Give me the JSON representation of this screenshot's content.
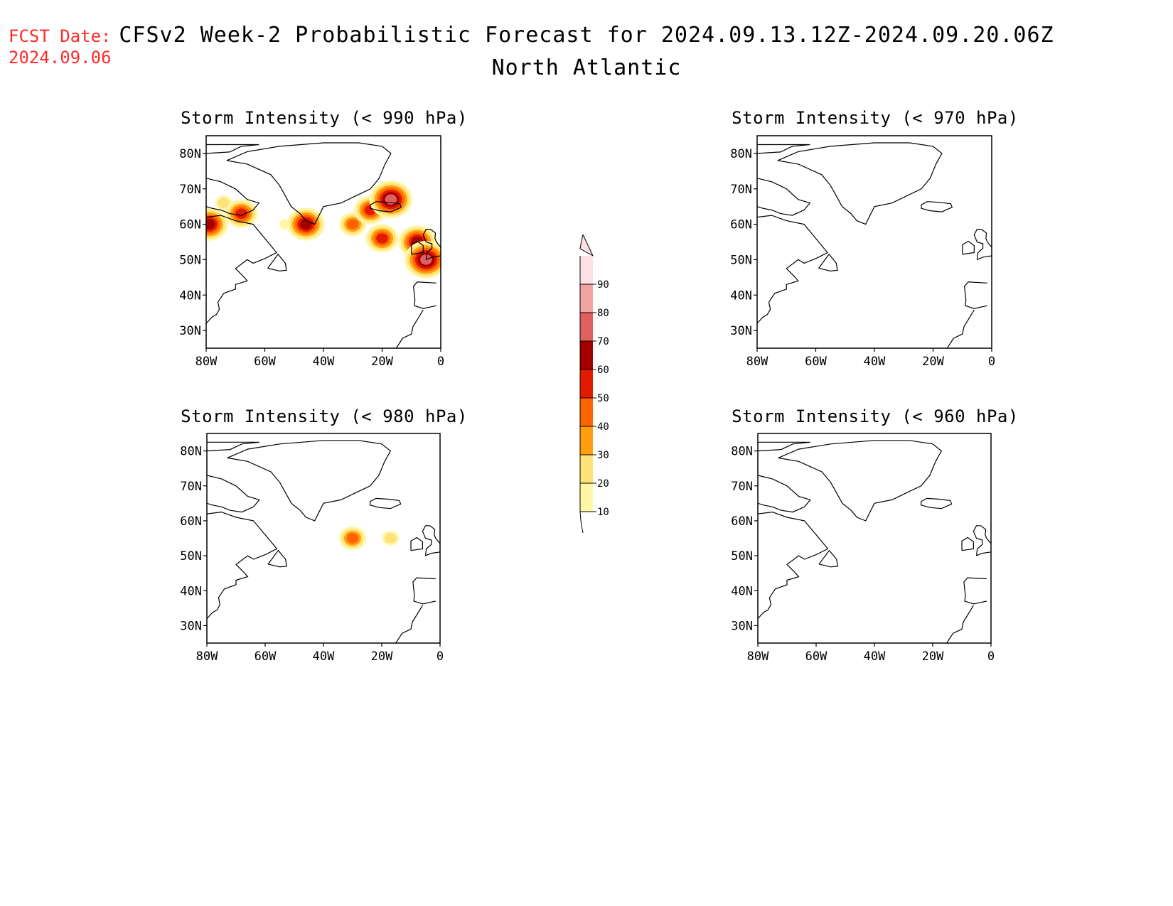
{
  "header": {
    "fcst_label": "FCST Date:",
    "fcst_date": "2024.09.06",
    "title": "CFSv2 Week-2 Probabilistic Forecast for 2024.09.13.12Z-2024.09.20.06Z",
    "subtitle": "North Atlantic"
  },
  "panels": [
    {
      "title": "Storm Intensity (< 990 hPa)"
    },
    {
      "title": "Storm Intensity (< 970 hPa)"
    },
    {
      "title": "Storm Intensity (< 980 hPa)"
    },
    {
      "title": "Storm Intensity (< 960 hPa)"
    }
  ],
  "axes": {
    "lat_labels": [
      "80N",
      "70N",
      "60N",
      "50N",
      "40N",
      "30N"
    ],
    "lon_labels": [
      "80W",
      "60W",
      "40W",
      "20W",
      "0"
    ]
  },
  "colorbar": {
    "levels": [
      "10",
      "20",
      "30",
      "40",
      "50",
      "60",
      "70",
      "80",
      "90"
    ],
    "colors": [
      "#fff6a8",
      "#fde27a",
      "#ff9f10",
      "#ff6400",
      "#e21a00",
      "#a50000",
      "#e06060",
      "#f4a3a3",
      "#fde0e4"
    ]
  },
  "chart_data": [
    {
      "type": "map",
      "panel": "Storm Intensity (< 990 hPa)",
      "lon_range": [
        -80,
        0
      ],
      "lat_range": [
        25,
        85
      ],
      "probability_areas": [
        {
          "lon": -74,
          "lat": 66,
          "pct": 20
        },
        {
          "lon": -68,
          "lat": 63,
          "pct": 50
        },
        {
          "lon": -79,
          "lat": 60,
          "pct": 60
        },
        {
          "lon": -53,
          "lat": 60,
          "pct": 10
        },
        {
          "lon": -46,
          "lat": 60,
          "pct": 60
        },
        {
          "lon": -30,
          "lat": 60,
          "pct": 40
        },
        {
          "lon": -24,
          "lat": 64,
          "pct": 50
        },
        {
          "lon": -17,
          "lat": 67,
          "pct": 70
        },
        {
          "lon": -20,
          "lat": 56,
          "pct": 50
        },
        {
          "lon": -8,
          "lat": 55,
          "pct": 60
        },
        {
          "lon": -5,
          "lat": 50,
          "pct": 70
        }
      ]
    },
    {
      "type": "map",
      "panel": "Storm Intensity (< 970 hPa)",
      "lon_range": [
        -80,
        0
      ],
      "lat_range": [
        25,
        85
      ],
      "probability_areas": []
    },
    {
      "type": "map",
      "panel": "Storm Intensity (< 980 hPa)",
      "lon_range": [
        -80,
        0
      ],
      "lat_range": [
        25,
        85
      ],
      "probability_areas": [
        {
          "lon": -30,
          "lat": 55,
          "pct": 40
        },
        {
          "lon": -17,
          "lat": 55,
          "pct": 20
        }
      ]
    },
    {
      "type": "map",
      "panel": "Storm Intensity (< 960 hPa)",
      "lon_range": [
        -80,
        0
      ],
      "lat_range": [
        25,
        85
      ],
      "probability_areas": []
    }
  ]
}
